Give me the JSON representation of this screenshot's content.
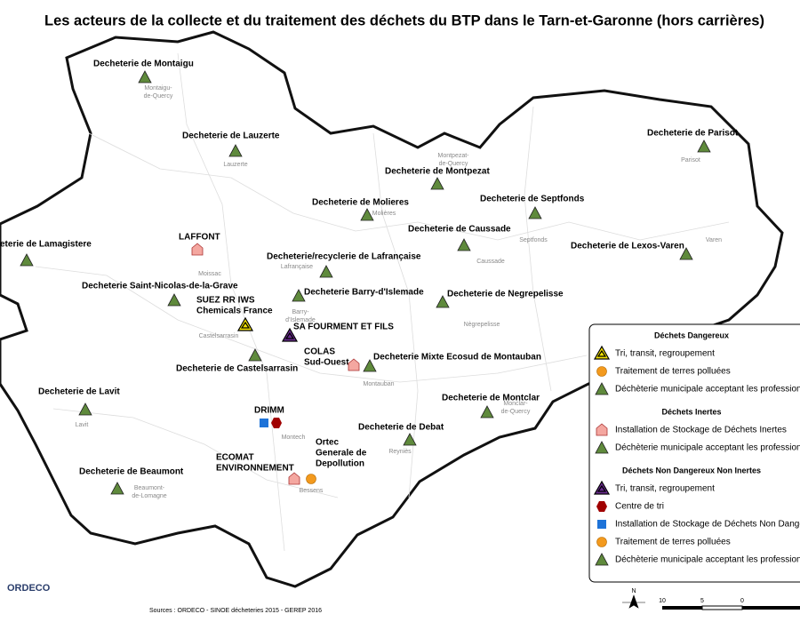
{
  "title": "Les acteurs de la collecte et du traitement des déchets du BTP dans le Tarn-et-Garonne (hors carrières)",
  "sites": [
    {
      "lines": [
        "Decheterie de Montaigu"
      ]
    },
    {
      "lines": [
        "Decheterie de Lauzerte"
      ]
    },
    {
      "lines": [
        "Decheterie de Parisot"
      ]
    },
    {
      "lines": [
        "Decheterie de Montpezat"
      ]
    },
    {
      "lines": [
        "Decheterie de Molieres"
      ]
    },
    {
      "lines": [
        "Decheterie de Septfonds"
      ]
    },
    {
      "lines": [
        "Decheterie de Caussade"
      ]
    },
    {
      "lines": [
        "Decheterie de Lexos-Varen"
      ]
    },
    {
      "lines": [
        "eterie de Lamagistere"
      ]
    },
    {
      "lines": [
        "LAFFONT"
      ]
    },
    {
      "lines": [
        "Decheterie/recyclerie de Lafrançaise"
      ]
    },
    {
      "lines": [
        "Decheterie Saint-Nicolas-de-la-Grave"
      ]
    },
    {
      "lines": [
        "Decheterie Barry-d'Islemade"
      ]
    },
    {
      "lines": [
        "Decheterie de Negrepelisse"
      ]
    },
    {
      "lines": [
        "SUEZ RR IWS",
        "Chemicals France"
      ]
    },
    {
      "lines": [
        "SA FOURMENT ET FILS"
      ]
    },
    {
      "lines": [
        "COLAS",
        "Sud-Ouest"
      ]
    },
    {
      "lines": [
        "Decheterie Mixte Ecosud de Montauban"
      ]
    },
    {
      "lines": [
        "Decheterie de Castelsarrasin"
      ]
    },
    {
      "lines": [
        "Decheterie de Lavit"
      ]
    },
    {
      "lines": [
        "Decheterie de Montclar"
      ]
    },
    {
      "lines": [
        "DRIMM"
      ]
    },
    {
      "lines": [
        "Decheterie de Debat"
      ]
    },
    {
      "lines": [
        "ECOMAT",
        "ENVIRONNEMENT"
      ]
    },
    {
      "lines": [
        "Ortec",
        "Generale de",
        "Depollution"
      ]
    },
    {
      "lines": [
        "Decheterie de Beaumont"
      ]
    }
  ],
  "towns": [
    [
      "Montaigu-",
      "de-Quercy"
    ],
    [
      "Lauzerte"
    ],
    [
      "Parisot"
    ],
    [
      "Montpezat-",
      "de-Quercy"
    ],
    [
      "Molières"
    ],
    [
      "Septfonds"
    ],
    [
      "Caussade"
    ],
    [
      "Varen"
    ],
    [
      "Moissac"
    ],
    [
      "Lafrançaise"
    ],
    [
      "Barry-",
      "d'Islemade"
    ],
    [
      "Nègrepelisse"
    ],
    [
      "Castelsarrasin"
    ],
    [
      "Montauban"
    ],
    [
      "Monclar-",
      "de-Quercy"
    ],
    [
      "Montech"
    ],
    [
      "Reyniès"
    ],
    [
      "Bessens"
    ],
    [
      "Beaumont-",
      "de-Lomagne"
    ],
    [
      "Lavit"
    ]
  ],
  "legend": [
    {
      "title": "Déchets Dangereux",
      "items": [
        "Tri, transit, regroupement",
        "Traitement de terres polluées",
        "Déchèterie municipale acceptant les profession"
      ]
    },
    {
      "title": "Déchets Inertes",
      "items": [
        "Installation de Stockage de Déchets Inertes",
        "Déchèterie municipale acceptant les profession"
      ]
    },
    {
      "title": "Déchets Non Dangereux Non Inertes",
      "items": [
        "Tri, transit, regroupement",
        "Centre de tri",
        "Installation de Stockage de Déchets Non Dange",
        "Traitement de terres polluées",
        "Déchèterie municipale acceptant les profession"
      ]
    }
  ],
  "source": "Sources : ORDECO - SINOE décheteries 2015 - GEREP 2016",
  "logo": "ORDECO",
  "north": "N",
  "scale": [
    "10",
    "5",
    "0"
  ]
}
